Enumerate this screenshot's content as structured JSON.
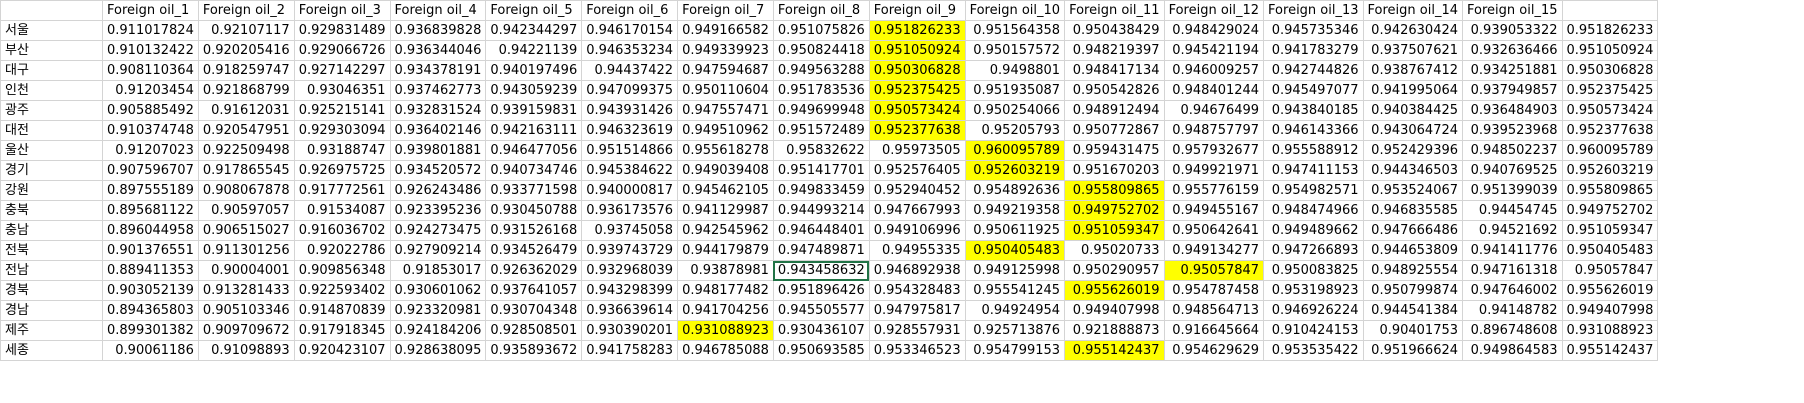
{
  "sheet": {
    "headers": [
      "",
      "Foreign oil_1",
      "Foreign oil_2",
      "Foreign oil_3",
      "Foreign oil_4",
      "Foreign oil_5",
      "Foreign oil_6",
      "Foreign oil_7",
      "Foreign oil_8",
      "Foreign oil_9",
      "Foreign oil_10",
      "Foreign oil_11",
      "Foreign oil_12",
      "Foreign oil_13",
      "Foreign oil_14",
      "Foreign oil_15",
      ""
    ],
    "rows": [
      {
        "label": "서울",
        "values": [
          "0.911017824",
          "0.92107117",
          "0.929831489",
          "0.936839828",
          "0.942344297",
          "0.946170154",
          "0.949166582",
          "0.951075826",
          "0.951826233",
          "0.951564358",
          "0.950438429",
          "0.948429024",
          "0.945735346",
          "0.942630424",
          "0.939053322",
          "0.951826233"
        ],
        "highlight": [
          8
        ]
      },
      {
        "label": "부산",
        "values": [
          "0.910132422",
          "0.920205416",
          "0.929066726",
          "0.936344046",
          "0.94221139",
          "0.946353234",
          "0.949339923",
          "0.950824418",
          "0.951050924",
          "0.950157572",
          "0.948219397",
          "0.945421194",
          "0.941783279",
          "0.937507621",
          "0.932636466",
          "0.951050924"
        ],
        "highlight": [
          8
        ]
      },
      {
        "label": "대구",
        "values": [
          "0.908110364",
          "0.918259747",
          "0.927142297",
          "0.934378191",
          "0.940197496",
          "0.94437422",
          "0.947594687",
          "0.949563288",
          "0.950306828",
          "0.9498801",
          "0.948417134",
          "0.946009257",
          "0.942744826",
          "0.938767412",
          "0.934251881",
          "0.950306828"
        ],
        "highlight": [
          8
        ]
      },
      {
        "label": "인천",
        "values": [
          "0.91203454",
          "0.921868799",
          "0.93046351",
          "0.937462773",
          "0.943059239",
          "0.947099375",
          "0.950110604",
          "0.951783536",
          "0.952375425",
          "0.951935087",
          "0.950542826",
          "0.948401244",
          "0.945497077",
          "0.941995064",
          "0.937949857",
          "0.952375425"
        ],
        "highlight": [
          8
        ]
      },
      {
        "label": "광주",
        "values": [
          "0.905885492",
          "0.91612031",
          "0.925215141",
          "0.932831524",
          "0.939159831",
          "0.943931426",
          "0.947557471",
          "0.949699948",
          "0.950573424",
          "0.950254066",
          "0.948912494",
          "0.94676499",
          "0.943840185",
          "0.940384425",
          "0.936484903",
          "0.950573424"
        ],
        "highlight": [
          8
        ]
      },
      {
        "label": "대전",
        "values": [
          "0.910374748",
          "0.920547951",
          "0.929303094",
          "0.936402146",
          "0.942163111",
          "0.946323619",
          "0.949510962",
          "0.951572489",
          "0.952377638",
          "0.95205793",
          "0.950772867",
          "0.948757797",
          "0.946143366",
          "0.943064724",
          "0.939523968",
          "0.952377638"
        ],
        "highlight": [
          8
        ]
      },
      {
        "label": "울산",
        "values": [
          "0.91207023",
          "0.922509498",
          "0.93188747",
          "0.939801881",
          "0.946477056",
          "0.951514866",
          "0.955618278",
          "0.95832622",
          "0.95973505",
          "0.960095789",
          "0.959431475",
          "0.957932677",
          "0.955588912",
          "0.952429396",
          "0.948502237",
          "0.960095789"
        ],
        "highlight": [
          9
        ]
      },
      {
        "label": "경기",
        "values": [
          "0.907596707",
          "0.917865545",
          "0.926975725",
          "0.934520572",
          "0.940734746",
          "0.945384622",
          "0.949039408",
          "0.951417701",
          "0.952576405",
          "0.952603219",
          "0.951670203",
          "0.949921971",
          "0.947411153",
          "0.944346503",
          "0.940769525",
          "0.952603219"
        ],
        "highlight": [
          9
        ]
      },
      {
        "label": "강원",
        "values": [
          "0.897555189",
          "0.908067878",
          "0.917772561",
          "0.926243486",
          "0.933771598",
          "0.940000817",
          "0.945462105",
          "0.949833459",
          "0.952940452",
          "0.954892636",
          "0.955809865",
          "0.955776159",
          "0.954982571",
          "0.953524067",
          "0.951399039",
          "0.955809865"
        ],
        "highlight": [
          10
        ]
      },
      {
        "label": "충북",
        "values": [
          "0.895681122",
          "0.90597057",
          "0.91534087",
          "0.923395236",
          "0.930450788",
          "0.936173576",
          "0.941129987",
          "0.944993214",
          "0.947667993",
          "0.949219358",
          "0.949752702",
          "0.949455167",
          "0.948474966",
          "0.946835585",
          "0.94454745",
          "0.949752702"
        ],
        "highlight": [
          10
        ]
      },
      {
        "label": "충남",
        "values": [
          "0.896044958",
          "0.906515027",
          "0.916036702",
          "0.924273475",
          "0.931526168",
          "0.93745058",
          "0.942545962",
          "0.946448401",
          "0.949106996",
          "0.950611925",
          "0.951059347",
          "0.950642641",
          "0.949489662",
          "0.947666486",
          "0.94521692",
          "0.951059347"
        ],
        "highlight": [
          10
        ]
      },
      {
        "label": "전북",
        "values": [
          "0.901376551",
          "0.911301256",
          "0.92022786",
          "0.927909214",
          "0.934526479",
          "0.939743729",
          "0.944179879",
          "0.947489871",
          "0.94955335",
          "0.950405483",
          "0.95020733",
          "0.949134277",
          "0.947266893",
          "0.944653809",
          "0.941411776",
          "0.950405483"
        ],
        "highlight": [
          9
        ]
      },
      {
        "label": "전남",
        "values": [
          "0.889411353",
          "0.90004001",
          "0.909856348",
          "0.91853017",
          "0.926362029",
          "0.932968039",
          "0.93878981",
          "0.943458632",
          "0.946892938",
          "0.949125998",
          "0.950290957",
          "0.95057847",
          "0.950083825",
          "0.948925554",
          "0.947161318",
          "0.95057847"
        ],
        "highlight": [
          11
        ],
        "selected": [
          7
        ]
      },
      {
        "label": "경북",
        "values": [
          "0.903052139",
          "0.913281433",
          "0.922593402",
          "0.930601062",
          "0.937641057",
          "0.943298399",
          "0.948177482",
          "0.951896426",
          "0.954328483",
          "0.955541245",
          "0.955626019",
          "0.954787458",
          "0.953198923",
          "0.950799874",
          "0.947646002",
          "0.955626019"
        ],
        "highlight": [
          10
        ]
      },
      {
        "label": "경남",
        "values": [
          "0.894365803",
          "0.905103346",
          "0.914870839",
          "0.923320981",
          "0.930704348",
          "0.936639614",
          "0.941704256",
          "0.945505577",
          "0.947975817",
          "0.94924954",
          "0.949407998",
          "0.948564713",
          "0.946926224",
          "0.944541384",
          "0.94148782",
          "0.949407998"
        ],
        "highlight": []
      },
      {
        "label": "제주",
        "values": [
          "0.899301382",
          "0.909709672",
          "0.917918345",
          "0.924184206",
          "0.928508501",
          "0.930390201",
          "0.931088923",
          "0.930436107",
          "0.928557931",
          "0.925713876",
          "0.921888873",
          "0.916645664",
          "0.910424153",
          "0.90401753",
          "0.896748608",
          "0.931088923"
        ],
        "highlight": [
          6
        ]
      },
      {
        "label": "세종",
        "values": [
          "0.90061186",
          "0.91098893",
          "0.920423107",
          "0.928638095",
          "0.935893672",
          "0.941758283",
          "0.946785088",
          "0.950693585",
          "0.953346523",
          "0.954799153",
          "0.955142437",
          "0.954629629",
          "0.953535422",
          "0.951966624",
          "0.949864583",
          "0.955142437"
        ],
        "highlight": [
          10
        ]
      }
    ]
  },
  "colors": {
    "highlight": "#ffff00",
    "grid": "#d4d4d4",
    "selection": "#217346"
  }
}
